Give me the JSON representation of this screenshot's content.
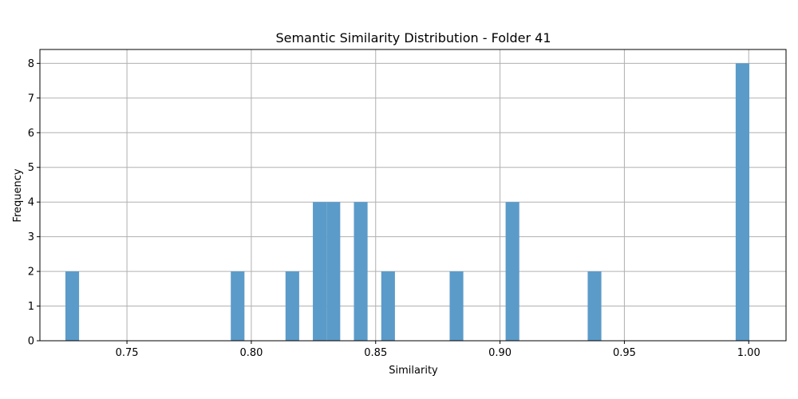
{
  "chart_data": {
    "type": "bar",
    "title": "Semantic Similarity Distribution - Folder 41",
    "xlabel": "Similarity",
    "ylabel": "Frequency",
    "xlim": [
      0.715,
      1.015
    ],
    "ylim": [
      0,
      8.4
    ],
    "xticks": [
      "0.75",
      "0.80",
      "0.85",
      "0.90",
      "0.95",
      "1.00"
    ],
    "xtick_values": [
      0.75,
      0.8,
      0.85,
      0.9,
      0.95,
      1.0
    ],
    "yticks": [
      "0",
      "1",
      "2",
      "3",
      "4",
      "5",
      "6",
      "7",
      "8"
    ],
    "grid": true,
    "bar_color": "#5b9bc9",
    "bin_width": 0.0055,
    "bins": [
      {
        "x": 0.728,
        "count": 2
      },
      {
        "x": 0.7945,
        "count": 2
      },
      {
        "x": 0.8165,
        "count": 2
      },
      {
        "x": 0.8275,
        "count": 4
      },
      {
        "x": 0.833,
        "count": 4
      },
      {
        "x": 0.844,
        "count": 4
      },
      {
        "x": 0.855,
        "count": 2
      },
      {
        "x": 0.8825,
        "count": 2
      },
      {
        "x": 0.905,
        "count": 4
      },
      {
        "x": 0.938,
        "count": 2
      },
      {
        "x": 0.9975,
        "count": 8
      }
    ]
  }
}
